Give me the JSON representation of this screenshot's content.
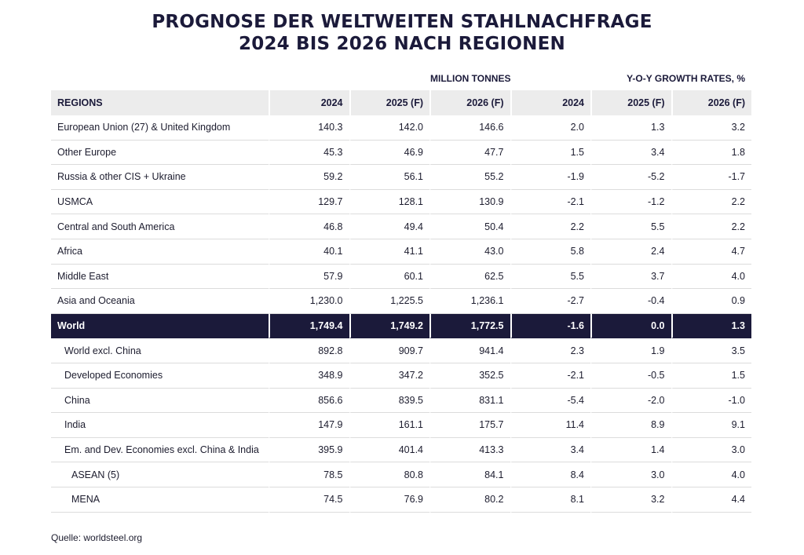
{
  "title": {
    "line1": "PROGNOSE DER WELTWEITEN STAHLNACHFRAGE",
    "line2": "2024 BIS 2026 NACH REGIONEN"
  },
  "group_labels": {
    "million": "MILLION TONNES",
    "yoy": "Y-O-Y GROWTH RATES, %"
  },
  "columns": [
    "REGIONS",
    "2024",
    "2025 (F)",
    "2026 (F)",
    "2024",
    "2025 (F)",
    "2026 (F)"
  ],
  "rows": [
    {
      "region": "European Union (27) & United Kingdom",
      "m2024": "140.3",
      "m2025": "142.0",
      "m2026": "146.6",
      "g2024": "2.0",
      "g2025": "1.3",
      "g2026": "3.2"
    },
    {
      "region": "Other Europe",
      "m2024": "45.3",
      "m2025": "46.9",
      "m2026": "47.7",
      "g2024": "1.5",
      "g2025": "3.4",
      "g2026": "1.8"
    },
    {
      "region": "Russia & other CIS + Ukraine",
      "m2024": "59.2",
      "m2025": "56.1",
      "m2026": "55.2",
      "g2024": "-1.9",
      "g2025": "-5.2",
      "g2026": "-1.7"
    },
    {
      "region": "USMCA",
      "m2024": "129.7",
      "m2025": "128.1",
      "m2026": "130.9",
      "g2024": "-2.1",
      "g2025": "-1.2",
      "g2026": "2.2"
    },
    {
      "region": "Central and South America",
      "m2024": "46.8",
      "m2025": "49.4",
      "m2026": "50.4",
      "g2024": "2.2",
      "g2025": "5.5",
      "g2026": "2.2"
    },
    {
      "region": "Africa",
      "m2024": "40.1",
      "m2025": "41.1",
      "m2026": "43.0",
      "g2024": "5.8",
      "g2025": "2.4",
      "g2026": "4.7"
    },
    {
      "region": "Middle East",
      "m2024": "57.9",
      "m2025": "60.1",
      "m2026": "62.5",
      "g2024": "5.5",
      "g2025": "3.7",
      "g2026": "4.0"
    },
    {
      "region": "Asia and Oceania",
      "m2024": "1,230.0",
      "m2025": "1,225.5",
      "m2026": "1,236.1",
      "g2024": "-2.7",
      "g2025": "-0.4",
      "g2026": "0.9"
    },
    {
      "region": "World",
      "m2024": "1,749.4",
      "m2025": "1,749.2",
      "m2026": "1,772.5",
      "g2024": "-1.6",
      "g2025": "0.0",
      "g2026": "1.3"
    },
    {
      "region": "World excl. China",
      "m2024": "892.8",
      "m2025": "909.7",
      "m2026": "941.4",
      "g2024": "2.3",
      "g2025": "1.9",
      "g2026": "3.5"
    },
    {
      "region": "Developed Economies",
      "m2024": "348.9",
      "m2025": "347.2",
      "m2026": "352.5",
      "g2024": "-2.1",
      "g2025": "-0.5",
      "g2026": "1.5"
    },
    {
      "region": "China",
      "m2024": "856.6",
      "m2025": "839.5",
      "m2026": "831.1",
      "g2024": "-5.4",
      "g2025": "-2.0",
      "g2026": "-1.0"
    },
    {
      "region": "India",
      "m2024": "147.9",
      "m2025": "161.1",
      "m2026": "175.7",
      "g2024": "11.4",
      "g2025": "8.9",
      "g2026": "9.1"
    },
    {
      "region": "Em. and Dev. Economies excl. China & India",
      "m2024": "395.9",
      "m2025": "401.4",
      "m2026": "413.3",
      "g2024": "3.4",
      "g2025": "1.4",
      "g2026": "3.0"
    },
    {
      "region": "ASEAN (5)",
      "m2024": "78.5",
      "m2025": "80.8",
      "m2026": "84.1",
      "g2024": "8.4",
      "g2025": "3.0",
      "g2026": "4.0"
    },
    {
      "region": "MENA",
      "m2024": "74.5",
      "m2025": "76.9",
      "m2026": "80.2",
      "g2024": "8.1",
      "g2025": "3.2",
      "g2026": "4.4"
    }
  ],
  "source": "Quelle: worldsteel.org",
  "colors": {
    "highlight_row": "#1b1a3a",
    "header_bg": "#ececec",
    "title": "#1b1a3a"
  }
}
